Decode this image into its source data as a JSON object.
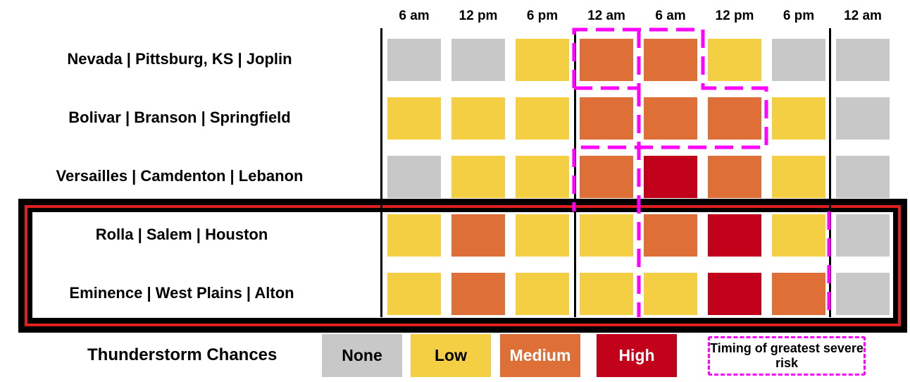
{
  "chart_data": {
    "type": "heatmap",
    "title": "",
    "columns": [
      "6 am",
      "12 pm",
      "6 pm",
      "12 am",
      "6 am",
      "12 pm",
      "6 pm",
      "12 am"
    ],
    "rows": [
      {
        "label": "Nevada | Pittsburg, KS | Joplin",
        "values": [
          "None",
          "None",
          "Low",
          "Medium",
          "Medium",
          "Low",
          "None",
          "None"
        ]
      },
      {
        "label": "Bolivar | Branson | Springfield",
        "values": [
          "Low",
          "Low",
          "Low",
          "Medium",
          "Medium",
          "Medium",
          "Low",
          "None"
        ]
      },
      {
        "label": "Versailles | Camdenton | Lebanon",
        "values": [
          "None",
          "Low",
          "Low",
          "Medium",
          "High",
          "Medium",
          "Low",
          "None"
        ]
      },
      {
        "label": "Rolla | Salem | Houston",
        "values": [
          "Low",
          "Medium",
          "Low",
          "Low",
          "Medium",
          "High",
          "Low",
          "None"
        ]
      },
      {
        "label": "Eminence | West Plains | Alton",
        "values": [
          "Low",
          "Medium",
          "Low",
          "Low",
          "Low",
          "High",
          "Medium",
          "None"
        ]
      }
    ],
    "highlighted_rows": [
      3,
      4
    ],
    "greatest_risk_timing": [
      {
        "row": 0,
        "columns": [
          3,
          4
        ]
      },
      {
        "row": 0,
        "columns": [
          4
        ]
      },
      {
        "row": 1,
        "columns": [
          4,
          5
        ]
      },
      {
        "row": 2,
        "columns": [
          4
        ]
      },
      {
        "row": 3,
        "columns": [
          4,
          5,
          6
        ]
      },
      {
        "row": 4,
        "columns": [
          4,
          5,
          6
        ]
      }
    ],
    "legend": {
      "title": "Thunderstorm Chances",
      "levels": [
        {
          "name": "None",
          "color": "#c8c8c8",
          "text_color": "#000000"
        },
        {
          "name": "Low",
          "color": "#f5cf43",
          "text_color": "#000000"
        },
        {
          "name": "Medium",
          "color": "#dd6f37",
          "text_color": "#ffffff"
        },
        {
          "name": "High",
          "color": "#c2021a",
          "text_color": "#ffffff"
        }
      ],
      "risk_label": "Timing of greatest severe risk",
      "risk_color": "#ff00ff"
    },
    "highlight_border_color": "#e02020"
  }
}
